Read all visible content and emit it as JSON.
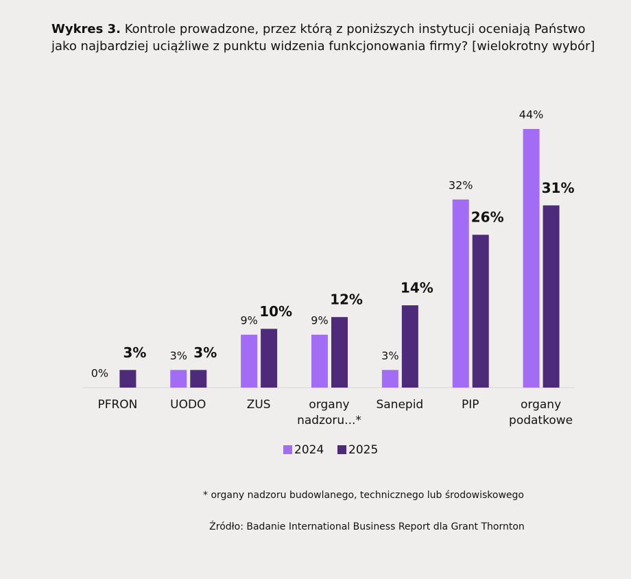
{
  "chart_data": {
    "type": "bar",
    "title_prefix": "Wykres 3.",
    "title": "Kontrole prowadzone, przez którą z poniższych instytucji oceniają Państwo jako najbardziej uciążliwe z punktu widzenia funkcjonowania firmy? [wielokrotny wybór]",
    "categories": [
      "PFRON",
      "UODO",
      "ZUS",
      "organy\nnadzoru...*",
      "Sanepid",
      "PIP",
      "organy\npodatkowe"
    ],
    "series": [
      {
        "name": "2024",
        "color": "#a26cf5",
        "values": [
          0,
          3,
          9,
          9,
          3,
          32,
          44
        ],
        "value_labels": [
          "0%",
          "3%",
          "9%",
          "9%",
          "3%",
          "32%",
          "44%"
        ]
      },
      {
        "name": "2025",
        "color": "#4e2a7a",
        "values": [
          3,
          3,
          10,
          12,
          14,
          26,
          31
        ],
        "value_labels": [
          "3%",
          "3%",
          "10%",
          "12%",
          "14%",
          "26%",
          "31%"
        ]
      }
    ],
    "footnote": "* organy nadzoru budowlanego, technicznego lub środowiskowego",
    "source": "Źródło: Badanie International Business Report dla Grant Thornton"
  }
}
